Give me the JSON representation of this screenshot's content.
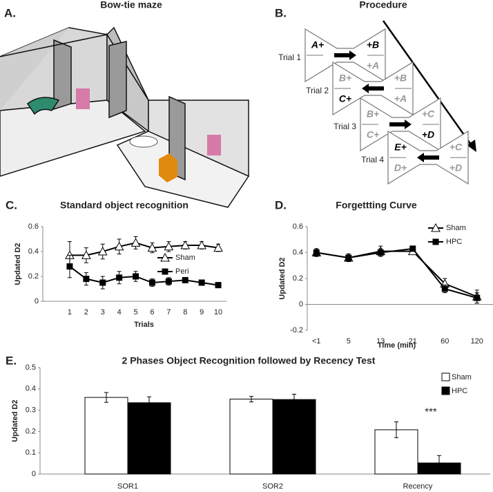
{
  "panels": {
    "A": {
      "label": "A.",
      "title": "Bow-tie maze"
    },
    "B": {
      "label": "B.",
      "title": "Procedure",
      "trials": [
        {
          "name": "Trial 1",
          "arrow": "right",
          "labels": {
            "left_top": {
              "text": "A+",
              "faded": false
            },
            "right_top": {
              "text": "+B",
              "faded": false
            },
            "right_bottom": {
              "text": "+A",
              "faded": true
            }
          }
        },
        {
          "name": "Trial 2",
          "arrow": "left",
          "labels": {
            "left_top": {
              "text": "B+",
              "faded": true
            },
            "left_bottom": {
              "text": "C+",
              "faded": false
            },
            "right_top": {
              "text": "+B",
              "faded": true
            },
            "right_bottom": {
              "text": "+A",
              "faded": true
            }
          }
        },
        {
          "name": "Trial 3",
          "arrow": "right",
          "labels": {
            "left_top": {
              "text": "B+",
              "faded": true
            },
            "left_bottom": {
              "text": "C+",
              "faded": true
            },
            "right_top": {
              "text": "+C",
              "faded": true
            },
            "right_bottom": {
              "text": "+D",
              "faded": false
            }
          }
        },
        {
          "name": "Trial 4",
          "arrow": "left",
          "labels": {
            "left_top": {
              "text": "E+",
              "faded": false
            },
            "left_bottom": {
              "text": "D+",
              "faded": true
            },
            "right_top": {
              "text": "+C",
              "faded": true
            },
            "right_bottom": {
              "text": "+D",
              "faded": true
            }
          }
        }
      ]
    }
  },
  "chart_data": [
    {
      "type": "line",
      "label": "C.",
      "title": "Standard object recognition",
      "x_label": "Trials",
      "y_label": "Updated D2",
      "categories": [
        "1",
        "2",
        "3",
        "4",
        "5",
        "6",
        "7",
        "8",
        "9",
        "10"
      ],
      "ylim": [
        0,
        0.6
      ],
      "yticks": [
        0,
        0.2,
        0.4,
        0.6
      ],
      "zero_line": false,
      "series": [
        {
          "name": "Sham",
          "marker": "triangle",
          "color": "#000000",
          "values": [
            0.37,
            0.37,
            0.4,
            0.44,
            0.47,
            0.43,
            0.44,
            0.45,
            0.45,
            0.43
          ],
          "errors": [
            0.11,
            0.06,
            0.06,
            0.06,
            0.05,
            0.04,
            0.04,
            0.03,
            0.03,
            0.03
          ]
        },
        {
          "name": "Peri",
          "marker": "square",
          "color": "#000000",
          "values": [
            0.28,
            0.18,
            0.15,
            0.19,
            0.2,
            0.15,
            0.16,
            0.17,
            0.15,
            0.13
          ],
          "errors": [
            0.09,
            0.05,
            0.05,
            0.05,
            0.04,
            0.03,
            0.03,
            0.02,
            0.01,
            0.01
          ]
        }
      ]
    },
    {
      "type": "line",
      "label": "D.",
      "title": "Forgettting Curve",
      "x_label": "Time (min)",
      "y_label": "Updated D2",
      "categories": [
        "<1",
        "5",
        "13",
        "21",
        "60",
        "120"
      ],
      "ylim": [
        -0.2,
        0.6
      ],
      "yticks": [
        -0.2,
        0,
        0.2,
        0.4,
        0.6
      ],
      "zero_line": true,
      "series": [
        {
          "name": "Sham",
          "marker": "triangle",
          "color": "#000000",
          "values": [
            0.4,
            0.36,
            0.41,
            0.41,
            0.16,
            0.06
          ],
          "errors": [
            0.03,
            0.03,
            0.04,
            0.02,
            0.04,
            0.05
          ]
        },
        {
          "name": "HPC",
          "marker": "square",
          "color": "#000000",
          "values": [
            0.4,
            0.36,
            0.4,
            0.43,
            0.12,
            0.05
          ],
          "errors": [
            0.03,
            0.02,
            0.03,
            0.02,
            0.03,
            0.04
          ]
        }
      ]
    },
    {
      "type": "bar",
      "label": "E.",
      "title": "2 Phases Object Recognition followed by Recency Test",
      "y_label": "Updated D2",
      "categories": [
        "SOR1",
        "SOR2",
        "Recency"
      ],
      "ylim": [
        0,
        0.5
      ],
      "yticks": [
        0,
        0.1,
        0.2,
        0.3,
        0.4,
        0.5
      ],
      "series": [
        {
          "name": "Sham",
          "color": "#ffffff",
          "values": [
            0.36,
            0.352,
            0.208
          ],
          "errors": [
            0.023,
            0.013,
            0.037
          ]
        },
        {
          "name": "HPC",
          "color": "#000000",
          "values": [
            0.335,
            0.35,
            0.052
          ],
          "errors": [
            0.028,
            0.025,
            0.035
          ]
        }
      ],
      "annotation": "***"
    }
  ]
}
